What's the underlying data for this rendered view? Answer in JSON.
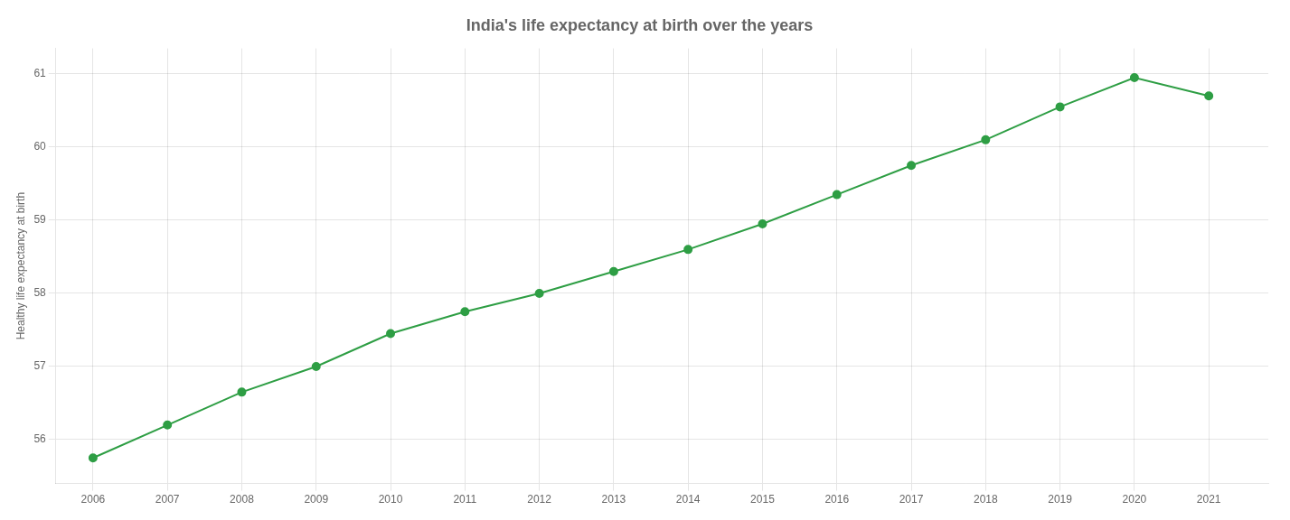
{
  "chart_data": {
    "type": "line",
    "title": "India's life expectancy at birth over the years",
    "ylabel": "Healthy life expectancy at birth",
    "x": [
      2006,
      2007,
      2008,
      2009,
      2010,
      2011,
      2012,
      2013,
      2014,
      2015,
      2016,
      2017,
      2018,
      2019,
      2020,
      2021
    ],
    "values": [
      55.75,
      56.2,
      56.65,
      57.0,
      57.45,
      57.75,
      58.0,
      58.3,
      58.6,
      58.95,
      59.35,
      59.75,
      60.1,
      60.55,
      60.95,
      60.7
    ],
    "color": "#2e9e44",
    "marker": "circle",
    "xlim": [
      2005.5,
      2021.8
    ],
    "xticks": [
      2006,
      2007,
      2008,
      2009,
      2010,
      2011,
      2012,
      2013,
      2014,
      2015,
      2016,
      2017,
      2018,
      2019,
      2020,
      2021
    ],
    "ylim": [
      55.4,
      61.35
    ],
    "yticks": [
      56,
      57,
      58,
      59,
      60,
      61
    ],
    "grid": true
  }
}
